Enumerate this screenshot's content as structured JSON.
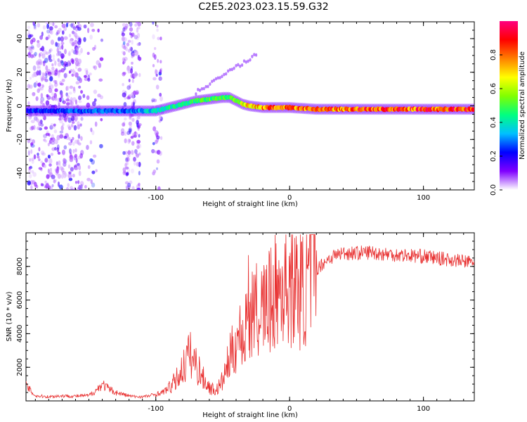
{
  "title": "C2E5.2023.023.15.59.G32",
  "chart_data": [
    {
      "type": "heatmap",
      "xlabel": "Height of straight line (km)",
      "ylabel": "Frequency (Hz)",
      "xlim": [
        -197,
        138
      ],
      "ylim": [
        -50,
        50
      ],
      "xticks": [
        "-100",
        "0",
        "100"
      ],
      "xtick_values": [
        -100,
        0,
        100
      ],
      "yticks": [
        "-40",
        "-20",
        "0",
        "20",
        "40"
      ],
      "ytick_values": [
        -40,
        -20,
        0,
        20,
        40
      ],
      "grid": false,
      "colorbar": {
        "label": "Normalized spectral amplitude",
        "range": [
          0,
          1
        ],
        "ticks": [
          "0.0",
          "0.2",
          "0.4",
          "0.6",
          "0.8"
        ],
        "tick_values": [
          0.0,
          0.2,
          0.4,
          0.6,
          0.8
        ],
        "colors": [
          "#ffffff",
          "#8000ff",
          "#0000ff",
          "#00c0ff",
          "#00ff80",
          "#80ff00",
          "#ffff00",
          "#ff8000",
          "#ff0000",
          "#ff0080"
        ]
      },
      "ridge": {
        "x": [
          -197,
          -150,
          -120,
          -100,
          -90,
          -80,
          -70,
          -60,
          -50,
          -45,
          -40,
          -35,
          -30,
          -20,
          -10,
          0,
          20,
          50,
          100,
          138
        ],
        "y": [
          -3,
          -3,
          -3,
          -3,
          -1,
          1,
          3,
          4,
          5,
          5,
          3,
          1,
          0,
          -1,
          -1,
          -1,
          -2,
          -2,
          -2,
          -2
        ],
        "amplitude": [
          0.25,
          0.3,
          0.3,
          0.4,
          0.45,
          0.45,
          0.5,
          0.55,
          0.55,
          0.5,
          0.6,
          0.7,
          0.75,
          0.8,
          0.85,
          0.8,
          0.85,
          0.9,
          0.9,
          0.95
        ]
      }
    },
    {
      "type": "line",
      "xlabel": "Height of straight line (km)",
      "ylabel": "SNR (10 * v/v)",
      "xlim": [
        -197,
        138
      ],
      "ylim": [
        0,
        10000
      ],
      "xticks": [
        "-100",
        "0",
        "100"
      ],
      "xtick_values": [
        -100,
        0,
        100
      ],
      "yticks": [
        "2000",
        "4000",
        "6000",
        "8000"
      ],
      "ytick_values": [
        2000,
        4000,
        6000,
        8000
      ],
      "grid": false,
      "color": "#e83030",
      "series": [
        {
          "x": [
            -197,
            -190,
            -180,
            -170,
            -160,
            -150,
            -145,
            -140,
            -135,
            -130,
            -125,
            -120,
            -115,
            -110,
            -105,
            -100,
            -95,
            -90,
            -85,
            -80,
            -75,
            -70,
            -65,
            -60,
            -55,
            -50,
            -45,
            -40,
            -35,
            -30,
            -25,
            -20,
            -15,
            -10,
            -5,
            0,
            5,
            10,
            15,
            20,
            25,
            30,
            35,
            40,
            50,
            60,
            70,
            80,
            90,
            100,
            110,
            120,
            130,
            138
          ],
          "values": [
            900,
            300,
            250,
            300,
            280,
            320,
            600,
            1000,
            700,
            500,
            400,
            300,
            250,
            250,
            300,
            400,
            500,
            800,
            1200,
            1900,
            2800,
            2200,
            1400,
            800,
            600,
            1200,
            2500,
            3500,
            4200,
            5000,
            5300,
            5500,
            5800,
            6500,
            6800,
            7000,
            6800,
            6500,
            7200,
            7800,
            8200,
            8500,
            8700,
            8800,
            8800,
            8850,
            8750,
            8700,
            8650,
            8600,
            8500,
            8400,
            8300,
            8250
          ]
        }
      ]
    }
  ]
}
